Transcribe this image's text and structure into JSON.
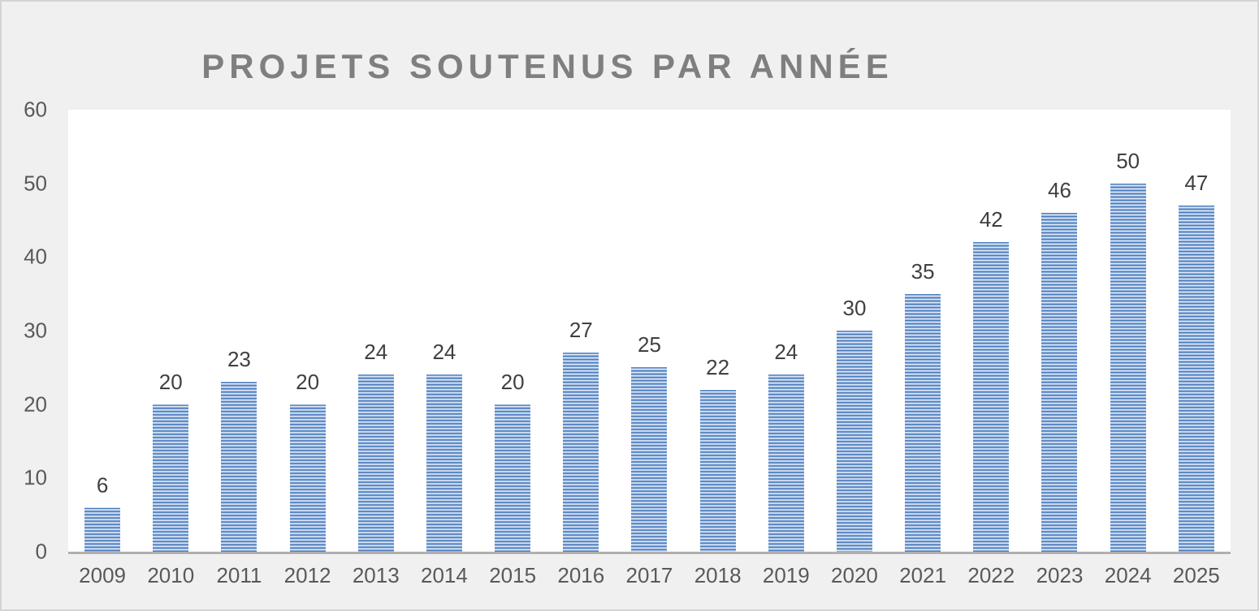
{
  "window": {
    "background": "#f1f0f0",
    "border_color": "#d6d4d2"
  },
  "chart_data": {
    "type": "bar",
    "title": "PROJETS SOUTENUS PAR ANNÉE",
    "categories": [
      "2009",
      "2010",
      "2011",
      "2012",
      "2013",
      "2014",
      "2015",
      "2016",
      "2017",
      "2018",
      "2019",
      "2020",
      "2021",
      "2022",
      "2023",
      "2024",
      "2025"
    ],
    "values": [
      6,
      20,
      23,
      20,
      24,
      24,
      20,
      27,
      25,
      22,
      24,
      30,
      35,
      42,
      46,
      50,
      47
    ],
    "xlabel": "",
    "ylabel": "",
    "ylim": [
      0,
      60
    ],
    "yticks": [
      0,
      10,
      20,
      30,
      40,
      50,
      60
    ],
    "grid": false,
    "legend": "none",
    "data_labels_visible": true,
    "colors": {
      "bar_stripe_dark": "#4a7cbe",
      "bar_stripe_mid": "#93b2db",
      "bar_stripe_light": "#dde7f5",
      "title": "#7f7f7f",
      "data_label": "#404040",
      "tick_label": "#595959",
      "axis_line": "#b0aeae",
      "plot_background": "#ffffff",
      "chart_background": "#f1f0f0"
    }
  }
}
